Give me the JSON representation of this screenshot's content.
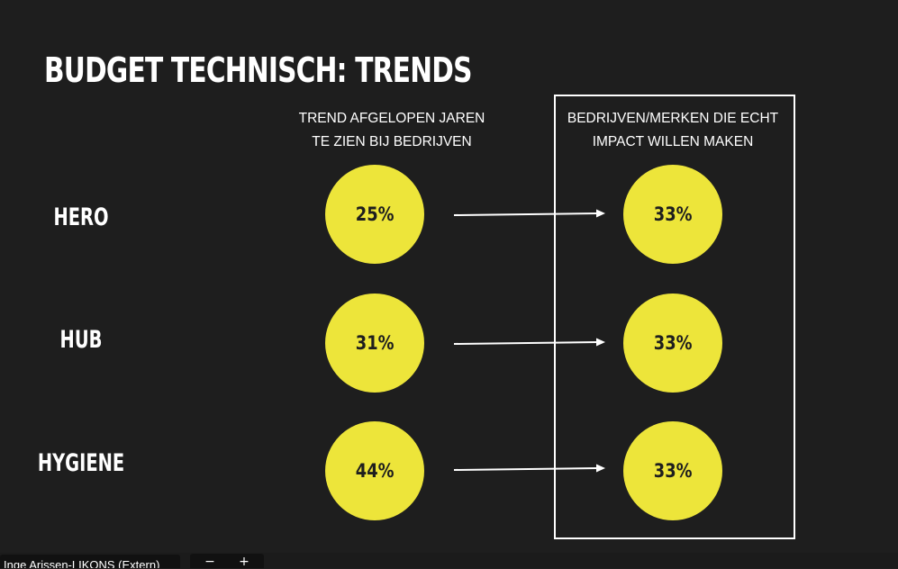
{
  "slide": {
    "title": "BUDGET TECHNISCH: TRENDS",
    "left_header": [
      "TREND AFGELOPEN JAREN",
      "TE ZIEN BIJ BEDRIJVEN"
    ],
    "right_header": [
      "BEDRIJVEN/MERKEN DIE ECHT",
      "IMPACT WILLEN MAKEN"
    ],
    "rows": [
      {
        "label": "HERO",
        "trend": "25%",
        "target": "33%"
      },
      {
        "label": "HUB",
        "trend": "31%",
        "target": "33%"
      },
      {
        "label": "HYGIENE",
        "trend": "44%",
        "target": "33%"
      }
    ]
  },
  "taskbar": {
    "participant_name": "Inge Arissen-LIKONS (Extern)",
    "zoom_out": "−",
    "zoom_in": "+"
  },
  "colors": {
    "background": "#1e1e1e",
    "circle": "#ede53a",
    "text": "#ffffff"
  },
  "icons": {
    "arrow": "right-arrow-icon",
    "zoom_out": "minus-icon",
    "zoom_in": "plus-icon"
  }
}
